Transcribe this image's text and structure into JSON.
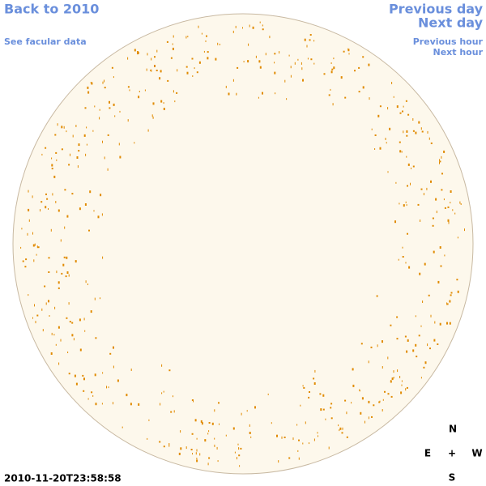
{
  "header": {
    "back_link": "Back to 2010",
    "facular_link": "See facular data",
    "previous_day": "Previous day",
    "next_day": "Next day",
    "previous_hour": "Previous hour",
    "next_hour": "Next hour"
  },
  "timestamp": "2010-11-20T23:58:58",
  "compass": {
    "north": "N",
    "east": "E",
    "center": "+",
    "west": "W",
    "south": "S"
  }
}
